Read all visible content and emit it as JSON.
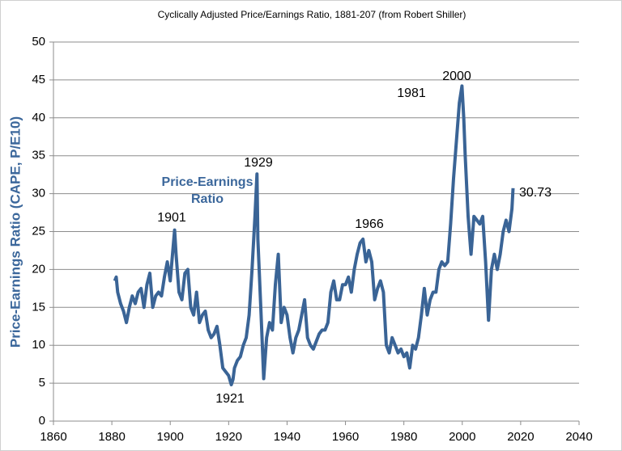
{
  "chart_data": {
    "type": "line",
    "title": "Cyclically Adjusted Price/Earnings Ratio, 1881-207 (from Robert Shiller)",
    "ylabel": "Price-Earnings Ratio (CAPE, P/E10)",
    "annotations": [
      "1901",
      "1929",
      "1921",
      "1966",
      "1981",
      "2000",
      "30.73"
    ],
    "x": [
      1881,
      1881.5,
      1882,
      1883,
      1884,
      1885,
      1886,
      1887,
      1888,
      1889,
      1890,
      1891,
      1892,
      1893,
      1894,
      1895,
      1896,
      1897,
      1898,
      1899,
      1900,
      1901,
      1901.5,
      1902,
      1903,
      1904,
      1905,
      1906,
      1907,
      1908,
      1909,
      1910,
      1911,
      1912,
      1913,
      1914,
      1915,
      1916,
      1917,
      1918,
      1919,
      1920,
      1920.9,
      1921.5,
      1922,
      1923,
      1924,
      1925,
      1926,
      1927,
      1928,
      1929,
      1929.7,
      1930,
      1931,
      1932,
      1933,
      1934,
      1935,
      1936,
      1937,
      1938,
      1939,
      1940,
      1941,
      1942,
      1943,
      1944,
      1945,
      1946,
      1947,
      1948,
      1949,
      1950,
      1951,
      1952,
      1953,
      1954,
      1955,
      1956,
      1957,
      1958,
      1959,
      1960,
      1961,
      1962,
      1963,
      1964,
      1965,
      1966,
      1967,
      1968,
      1969,
      1970,
      1971,
      1972,
      1973,
      1974,
      1975,
      1976,
      1977,
      1978,
      1979,
      1980,
      1981,
      1982,
      1983,
      1984,
      1985,
      1986,
      1987,
      1988,
      1989,
      1990,
      1991,
      1992,
      1993,
      1994,
      1995,
      1996,
      1997,
      1998,
      1999,
      1999.9,
      2000.5,
      2001,
      2002,
      2003,
      2004,
      2005,
      2006,
      2007,
      2008,
      2009,
      2010,
      2011,
      2012,
      2013,
      2014,
      2015,
      2016,
      2017,
      2017.4
    ],
    "series": [
      {
        "name": "Price-Earnings Ratio",
        "color": "#3a6496",
        "values": [
          18.5,
          19,
          17,
          15.5,
          14.5,
          13,
          15,
          16.5,
          15.5,
          17,
          17.5,
          15,
          18,
          19.5,
          15,
          16.5,
          17,
          16.5,
          19,
          21,
          18.5,
          23,
          25.2,
          22,
          17,
          16,
          19.5,
          20,
          15,
          14,
          17,
          13,
          14,
          14.5,
          12,
          11,
          11.5,
          12.5,
          10,
          7,
          6.5,
          6,
          4.8,
          5.5,
          7,
          8,
          8.5,
          10,
          11,
          14,
          20,
          27,
          32.6,
          24,
          15,
          5.6,
          11,
          13,
          12,
          18,
          22,
          13,
          15,
          14,
          11,
          9,
          11,
          12,
          14,
          16,
          11,
          10,
          9.5,
          10.5,
          11.5,
          12,
          12,
          13,
          17,
          18.5,
          16,
          16,
          18,
          18,
          19,
          17,
          20,
          22,
          23.5,
          24,
          21,
          22.5,
          21,
          16,
          17.5,
          18.5,
          17,
          10,
          9,
          11,
          10,
          9,
          9.5,
          8.5,
          9,
          7,
          10,
          9.5,
          11,
          14,
          17.5,
          14,
          16,
          17,
          17,
          20,
          21,
          20.5,
          21,
          26,
          32,
          37,
          42,
          44.2,
          40,
          35,
          27,
          22,
          27,
          26.5,
          26,
          27,
          21,
          13.3,
          20,
          22,
          20,
          22,
          25,
          26.5,
          25,
          28,
          30.73
        ]
      }
    ],
    "xlim": [
      1860,
      2040
    ],
    "xticks": [
      1860,
      1880,
      1900,
      1920,
      1940,
      1960,
      1980,
      2000,
      2020,
      2040
    ],
    "ylim": [
      0,
      50
    ],
    "yticks": [
      0,
      5,
      10,
      15,
      20,
      25,
      30,
      35,
      40,
      45,
      50
    ],
    "grid": true
  }
}
